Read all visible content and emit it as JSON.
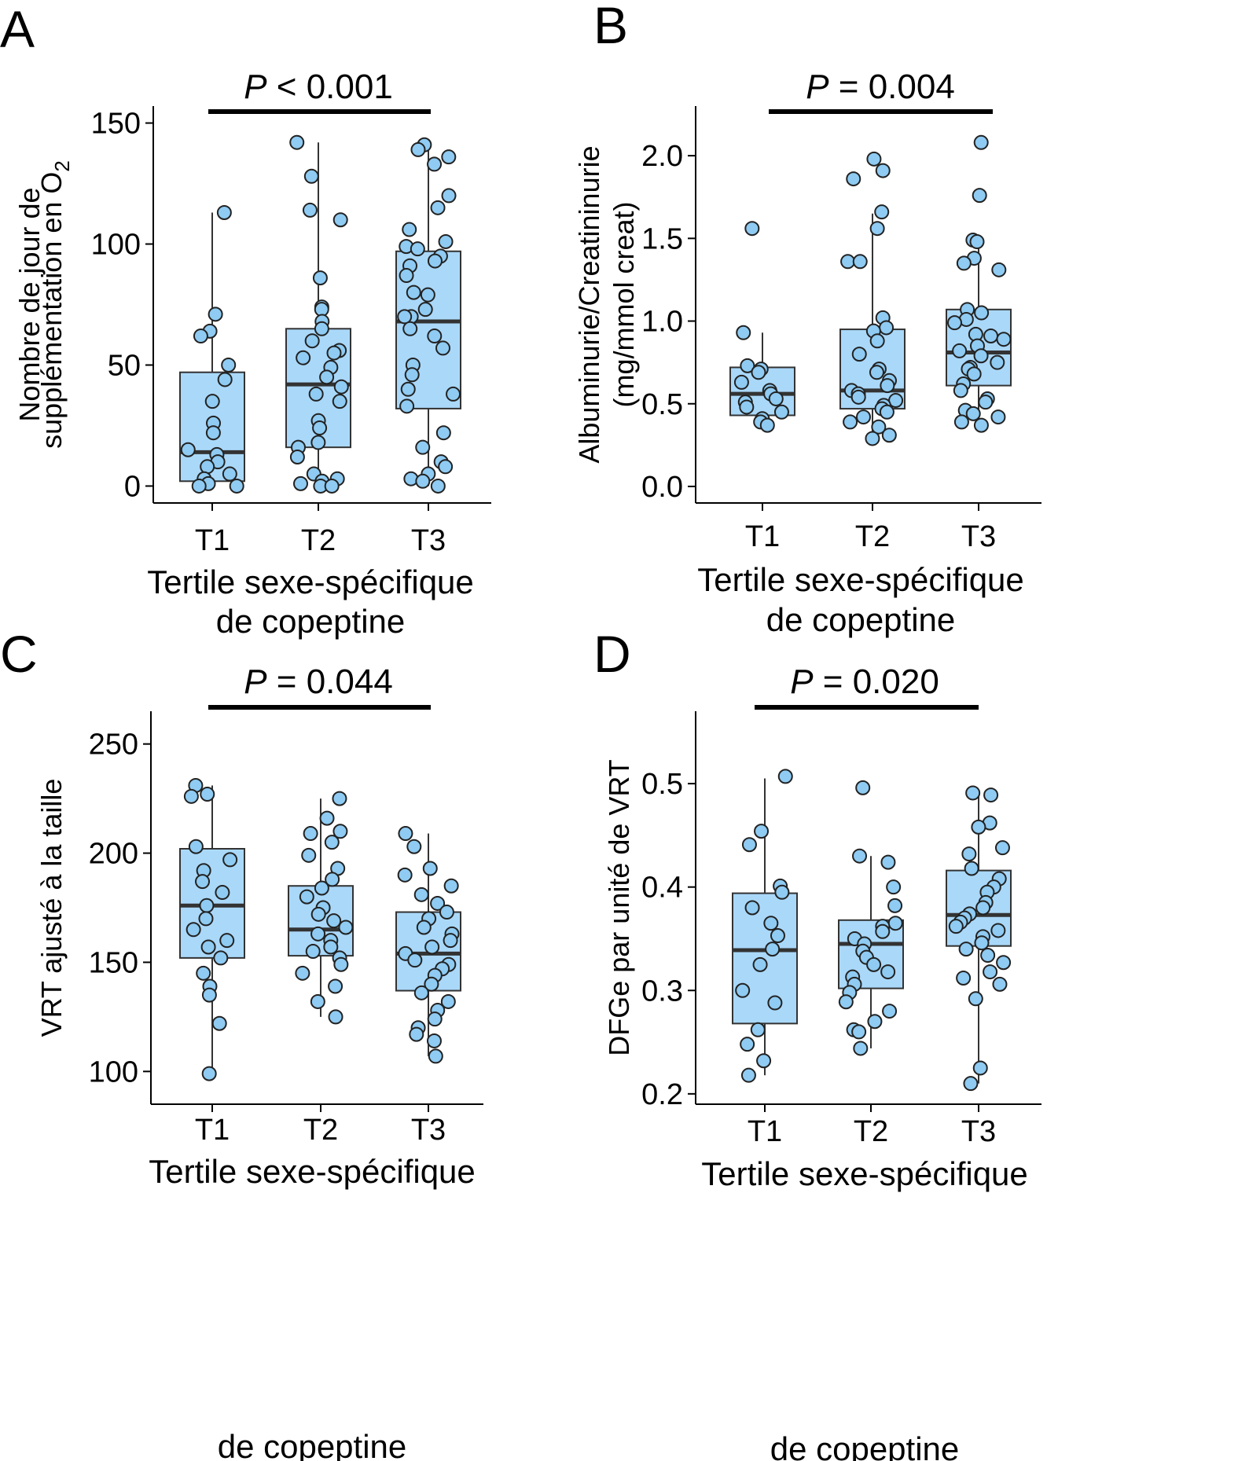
{
  "figure": {
    "style": {
      "box_fill": "#aad8f9",
      "point_fill": "#8fcbf2",
      "stroke": "#333333",
      "median": "#333333",
      "axis": "#000000",
      "background": "#ffffff"
    }
  },
  "chart_data": [
    {
      "type": "box",
      "panel": "A",
      "p_prefix": "P",
      "p_suffix": " < 0.001",
      "ylabel_lines": [
        "Nombre de jour de",
        "supplémentation en O"
      ],
      "ylabel_subscript": "2",
      "xlabel_lines": [
        "Tertile sexe-spécifique",
        "de copeptine"
      ],
      "categories": [
        "T1",
        "T2",
        "T3"
      ],
      "ylim": [
        -7,
        157
      ],
      "yticks": [
        0,
        50,
        100,
        150
      ],
      "ytick_labels": [
        "0",
        "50",
        "100",
        "150"
      ],
      "boxes": [
        {
          "category": "T1",
          "q1": 2,
          "median": 14,
          "q3": 47,
          "whisker_low": 0,
          "whisker_high": 113
        },
        {
          "category": "T2",
          "q1": 16,
          "median": 42,
          "q3": 65,
          "whisker_low": 0,
          "whisker_high": 142
        },
        {
          "category": "T3",
          "q1": 32,
          "median": 68,
          "q3": 97,
          "whisker_low": 0,
          "whisker_high": 141
        }
      ],
      "points": [
        [
          113,
          71,
          64,
          62,
          50,
          44,
          35,
          26,
          22,
          15,
          13,
          10,
          8,
          5,
          3,
          1,
          0,
          0
        ],
        [
          142,
          128,
          114,
          110,
          86,
          74,
          73,
          68,
          65,
          60,
          56,
          55,
          53,
          49,
          45,
          41,
          38,
          35,
          27,
          24,
          18,
          16,
          12,
          5,
          3,
          2,
          1,
          0,
          0
        ],
        [
          141,
          139,
          136,
          133,
          120,
          115,
          106,
          101,
          99,
          98,
          95,
          93,
          91,
          87,
          80,
          79,
          73,
          70,
          70,
          65,
          62,
          57,
          50,
          46,
          40,
          38,
          33,
          22,
          16,
          10,
          8,
          5,
          3,
          2,
          0
        ]
      ]
    },
    {
      "type": "box",
      "panel": "B",
      "p_prefix": "P",
      "p_suffix": " = 0.004",
      "ylabel_lines": [
        "Albuminurie/Creatininurie",
        "(mg/mmol creat)"
      ],
      "ylabel_subscript": "",
      "xlabel_lines": [
        "Tertile sexe-spécifique",
        "de copeptine"
      ],
      "categories": [
        "T1",
        "T2",
        "T3"
      ],
      "ylim": [
        -0.1,
        2.3
      ],
      "yticks": [
        0,
        0.5,
        1.0,
        1.5,
        2.0
      ],
      "ytick_labels": [
        "0.0",
        "0.5",
        "1.0",
        "1.5",
        "2.0"
      ],
      "boxes": [
        {
          "category": "T1",
          "q1": 0.43,
          "median": 0.56,
          "q3": 0.72,
          "whisker_low": 0.37,
          "whisker_high": 0.93
        },
        {
          "category": "T2",
          "q1": 0.47,
          "median": 0.58,
          "q3": 0.95,
          "whisker_low": 0.29,
          "whisker_high": 1.65
        },
        {
          "category": "T3",
          "q1": 0.61,
          "median": 0.81,
          "q3": 1.07,
          "whisker_low": 0.37,
          "whisker_high": 1.49
        }
      ],
      "points": [
        [
          1.56,
          0.93,
          0.73,
          0.71,
          0.69,
          0.63,
          0.58,
          0.56,
          0.53,
          0.51,
          0.48,
          0.45,
          0.41,
          0.39,
          0.37
        ],
        [
          1.98,
          1.91,
          1.86,
          1.66,
          1.56,
          1.36,
          1.36,
          1.02,
          0.96,
          0.94,
          0.88,
          0.8,
          0.71,
          0.69,
          0.64,
          0.61,
          0.58,
          0.56,
          0.54,
          0.52,
          0.49,
          0.47,
          0.45,
          0.42,
          0.39,
          0.36,
          0.31,
          0.29
        ],
        [
          2.08,
          1.76,
          1.49,
          1.48,
          1.38,
          1.35,
          1.31,
          1.07,
          1.05,
          1.01,
          0.99,
          0.92,
          0.91,
          0.89,
          0.85,
          0.82,
          0.79,
          0.75,
          0.72,
          0.71,
          0.68,
          0.62,
          0.58,
          0.53,
          0.51,
          0.46,
          0.44,
          0.42,
          0.39,
          0.37
        ]
      ]
    },
    {
      "type": "box",
      "panel": "C",
      "p_prefix": "P",
      "p_suffix": " = 0.044",
      "ylabel_lines": [
        "VRT ajusté à la taille"
      ],
      "ylabel_subscript": "",
      "xlabel_lines": [
        "Tertile sexe-spécifique",
        "de copeptine"
      ],
      "categories": [
        "T1",
        "T2",
        "T3"
      ],
      "ylim": [
        85,
        265
      ],
      "yticks": [
        100,
        150,
        200,
        250
      ],
      "ytick_labels": [
        "100",
        "150",
        "200",
        "250"
      ],
      "boxes": [
        {
          "category": "T1",
          "q1": 152,
          "median": 176,
          "q3": 202,
          "whisker_low": 99,
          "whisker_high": 231
        },
        {
          "category": "T2",
          "q1": 153,
          "median": 165,
          "q3": 185,
          "whisker_low": 125,
          "whisker_high": 225
        },
        {
          "category": "T3",
          "q1": 137,
          "median": 154,
          "q3": 173,
          "whisker_low": 107,
          "whisker_high": 209
        }
      ],
      "points": [
        [
          231,
          227,
          226,
          203,
          197,
          192,
          187,
          182,
          176,
          170,
          165,
          160,
          157,
          152,
          145,
          139,
          135,
          122,
          99
        ],
        [
          225,
          216,
          210,
          209,
          205,
          199,
          193,
          188,
          184,
          180,
          175,
          172,
          169,
          166,
          163,
          160,
          157,
          155,
          152,
          149,
          145,
          139,
          132,
          125
        ],
        [
          209,
          203,
          193,
          190,
          185,
          181,
          177,
          173,
          170,
          166,
          163,
          160,
          157,
          154,
          151,
          149,
          147,
          144,
          140,
          136,
          132,
          128,
          124,
          120,
          117,
          114,
          107
        ]
      ]
    },
    {
      "type": "box",
      "panel": "D",
      "p_prefix": "P",
      "p_suffix": " = 0.020",
      "ylabel_lines": [
        "DFGe par unité de VRT"
      ],
      "ylabel_subscript": "",
      "xlabel_lines": [
        "Tertile sexe-spécifique",
        "de copeptine"
      ],
      "categories": [
        "T1",
        "T2",
        "T3"
      ],
      "ylim": [
        0.19,
        0.57
      ],
      "yticks": [
        0.2,
        0.3,
        0.4,
        0.5
      ],
      "ytick_labels": [
        "0.2",
        "0.3",
        "0.4",
        "0.5"
      ],
      "boxes": [
        {
          "category": "T1",
          "q1": 0.268,
          "median": 0.339,
          "q3": 0.394,
          "whisker_low": 0.218,
          "whisker_high": 0.505
        },
        {
          "category": "T2",
          "q1": 0.302,
          "median": 0.345,
          "q3": 0.368,
          "whisker_low": 0.244,
          "whisker_high": 0.43
        },
        {
          "category": "T3",
          "q1": 0.343,
          "median": 0.373,
          "q3": 0.416,
          "whisker_low": 0.21,
          "whisker_high": 0.491
        }
      ],
      "points": [
        [
          0.507,
          0.454,
          0.441,
          0.401,
          0.395,
          0.38,
          0.365,
          0.353,
          0.34,
          0.325,
          0.3,
          0.288,
          0.262,
          0.248,
          0.232,
          0.218
        ],
        [
          0.496,
          0.43,
          0.424,
          0.4,
          0.382,
          0.365,
          0.362,
          0.357,
          0.35,
          0.345,
          0.338,
          0.332,
          0.325,
          0.318,
          0.313,
          0.306,
          0.298,
          0.289,
          0.28,
          0.27,
          0.262,
          0.26,
          0.244
        ],
        [
          0.491,
          0.489,
          0.462,
          0.458,
          0.438,
          0.432,
          0.418,
          0.408,
          0.4,
          0.395,
          0.385,
          0.38,
          0.374,
          0.37,
          0.366,
          0.362,
          0.358,
          0.352,
          0.346,
          0.34,
          0.334,
          0.327,
          0.318,
          0.312,
          0.306,
          0.292,
          0.225,
          0.21
        ]
      ]
    }
  ]
}
